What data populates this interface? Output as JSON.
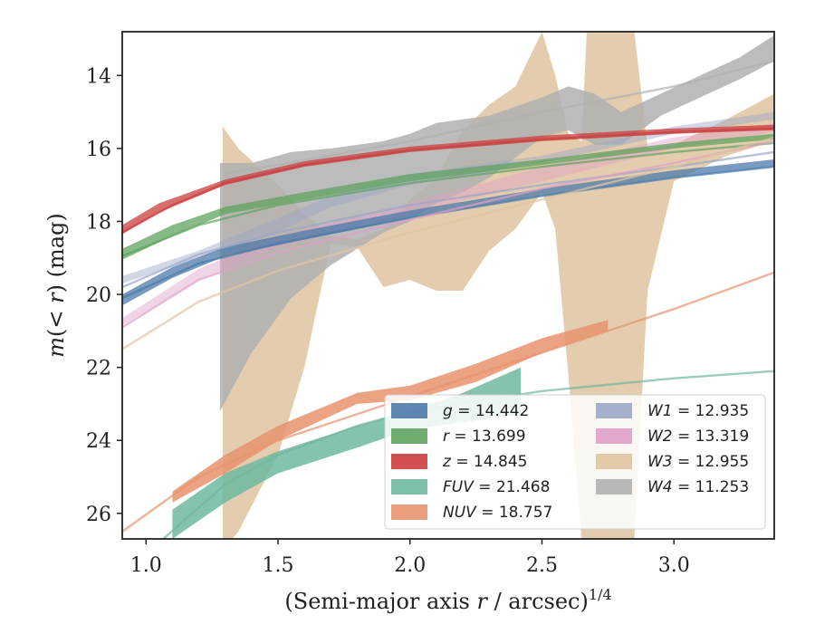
{
  "chart_data": {
    "type": "area",
    "xlabel": "(Semi-major axis r / arcsec)",
    "xlabel_var": "r",
    "xlabel_prefix": "(Semi-major axis ",
    "xlabel_suffix": " / arcsec)",
    "xlabel_exp": "1/4",
    "ylabel": "m(< r) (mag)",
    "ylabel_m": "m",
    "ylabel_open": "(",
    "ylabel_lt": "< r",
    "ylabel_close": ") (mag)",
    "xlim": [
      0.91,
      3.38
    ],
    "ylim": [
      26.7,
      12.8
    ],
    "y_inverted": true,
    "xticks": [
      1.0,
      1.5,
      2.0,
      2.5,
      3.0
    ],
    "xtick_labels": [
      "1.0",
      "1.5",
      "2.0",
      "2.5",
      "3.0"
    ],
    "yticks": [
      14,
      16,
      18,
      20,
      22,
      24,
      26
    ],
    "ytick_labels": [
      "14",
      "16",
      "18",
      "20",
      "22",
      "24",
      "26"
    ],
    "grid": false,
    "legend_placement": "lower-right",
    "legend_columns": 2,
    "series": [
      {
        "key": "g",
        "band": "g",
        "total": "14.442",
        "color": "#4c7aaa",
        "model": [
          [
            0.91,
            20.1
          ],
          [
            1.2,
            19.15
          ],
          [
            1.5,
            18.6
          ],
          [
            2.0,
            17.9
          ],
          [
            2.5,
            17.3
          ],
          [
            3.0,
            16.8
          ],
          [
            3.38,
            16.5
          ]
        ],
        "band_obs": [
          [
            0.91,
            20.3,
            20.0
          ],
          [
            1.1,
            19.55,
            19.25
          ],
          [
            1.3,
            18.95,
            18.7
          ],
          [
            1.6,
            18.5,
            18.25
          ],
          [
            2.0,
            17.9,
            17.7
          ],
          [
            2.5,
            17.3,
            17.1
          ],
          [
            3.0,
            16.8,
            16.6
          ],
          [
            3.38,
            16.5,
            16.3
          ]
        ]
      },
      {
        "key": "r",
        "band": "r",
        "total": "13.699",
        "color": "#5fa35f",
        "model": [
          [
            0.91,
            18.95
          ],
          [
            1.2,
            18.1
          ],
          [
            1.5,
            17.55
          ],
          [
            2.0,
            16.95
          ],
          [
            2.5,
            16.5
          ],
          [
            3.0,
            16.1
          ],
          [
            3.38,
            15.85
          ]
        ],
        "band_obs": [
          [
            0.91,
            19.05,
            18.75
          ],
          [
            1.1,
            18.4,
            18.1
          ],
          [
            1.3,
            17.8,
            17.6
          ],
          [
            1.6,
            17.4,
            17.2
          ],
          [
            2.0,
            16.9,
            16.7
          ],
          [
            2.5,
            16.45,
            16.3
          ],
          [
            3.0,
            16.0,
            15.85
          ],
          [
            3.38,
            15.75,
            15.6
          ]
        ]
      },
      {
        "key": "z",
        "band": "z",
        "total": "14.845",
        "color": "#cc3d3d",
        "model": [
          [
            0.91,
            18.3
          ],
          [
            1.1,
            17.55
          ],
          [
            1.3,
            16.95
          ],
          [
            1.6,
            16.45
          ],
          [
            2.0,
            16.05
          ],
          [
            2.5,
            15.75
          ],
          [
            3.0,
            15.55
          ],
          [
            3.38,
            15.45
          ]
        ],
        "band_obs": [
          [
            0.91,
            18.35,
            18.1
          ],
          [
            1.05,
            17.75,
            17.5
          ],
          [
            1.3,
            17.0,
            16.85
          ],
          [
            1.6,
            16.5,
            16.35
          ],
          [
            2.0,
            16.1,
            15.95
          ],
          [
            2.5,
            15.8,
            15.65
          ],
          [
            3.0,
            15.6,
            15.45
          ],
          [
            3.38,
            15.5,
            15.35
          ]
        ]
      },
      {
        "key": "fuv",
        "band": "FUV",
        "total": "21.468",
        "color": "#6fb8a0",
        "model": [
          [
            1.05,
            26.8
          ],
          [
            1.3,
            25.2
          ],
          [
            1.5,
            24.4
          ],
          [
            1.8,
            23.6
          ],
          [
            2.0,
            23.2
          ],
          [
            2.5,
            22.65
          ],
          [
            3.0,
            22.3
          ],
          [
            3.38,
            22.1
          ]
        ],
        "band_obs": [
          [
            1.1,
            26.7,
            25.9
          ],
          [
            1.3,
            25.7,
            24.9
          ],
          [
            1.5,
            24.9,
            24.3
          ],
          [
            1.8,
            24.2,
            23.6
          ],
          [
            2.0,
            23.7,
            23.2
          ],
          [
            2.2,
            23.5,
            22.7
          ],
          [
            2.42,
            23.3,
            22.0
          ]
        ]
      },
      {
        "key": "nuv",
        "band": "NUV",
        "total": "18.757",
        "color": "#e8936e",
        "model": [
          [
            0.91,
            26.5
          ],
          [
            1.2,
            25.0
          ],
          [
            1.5,
            24.0
          ],
          [
            2.0,
            22.8
          ],
          [
            2.5,
            21.6
          ],
          [
            3.0,
            20.4
          ],
          [
            3.38,
            19.4
          ]
        ],
        "band_obs": [
          [
            1.1,
            25.7,
            25.4
          ],
          [
            1.3,
            24.9,
            24.4
          ],
          [
            1.5,
            24.0,
            23.6
          ],
          [
            1.8,
            23.0,
            22.7
          ],
          [
            2.0,
            22.9,
            22.5
          ],
          [
            2.25,
            22.4,
            21.9
          ],
          [
            2.5,
            21.6,
            21.2
          ],
          [
            2.75,
            21.0,
            20.7
          ]
        ]
      },
      {
        "key": "w1",
        "band": "W1",
        "total": "12.935",
        "color": "#9ba7c8",
        "model": [
          [
            0.91,
            19.8
          ],
          [
            1.2,
            18.9
          ],
          [
            1.5,
            18.3
          ],
          [
            2.0,
            17.55
          ],
          [
            2.5,
            17.0
          ],
          [
            3.0,
            16.5
          ],
          [
            3.38,
            16.1
          ]
        ],
        "band_obs": [
          [
            0.91,
            19.7,
            19.5
          ],
          [
            1.2,
            19.0,
            18.8
          ],
          [
            1.5,
            18.3,
            17.9
          ],
          [
            1.7,
            17.6,
            17.3
          ],
          [
            2.0,
            17.0,
            16.7
          ],
          [
            2.5,
            16.4,
            16.2
          ],
          [
            3.0,
            15.6,
            15.4
          ],
          [
            3.38,
            15.2,
            15.0
          ]
        ]
      },
      {
        "key": "w2",
        "band": "W2",
        "total": "13.319",
        "color": "#e0a0c8",
        "model": [
          [
            0.91,
            20.9
          ],
          [
            1.2,
            19.6
          ],
          [
            1.5,
            18.85
          ],
          [
            2.0,
            17.95
          ],
          [
            2.5,
            17.1
          ],
          [
            3.0,
            16.4
          ],
          [
            3.38,
            15.8
          ]
        ],
        "band_obs": [
          [
            0.91,
            20.85,
            20.65
          ],
          [
            1.2,
            19.6,
            19.3
          ],
          [
            1.5,
            18.7,
            18.4
          ],
          [
            2.0,
            17.8,
            17.5
          ],
          [
            2.5,
            16.9,
            16.5
          ],
          [
            3.0,
            16.0,
            15.7
          ],
          [
            3.38,
            15.55,
            15.3
          ]
        ]
      },
      {
        "key": "w3",
        "band": "W3",
        "total": "12.955",
        "color": "#dfc4a0",
        "model": [
          [
            0.91,
            21.5
          ],
          [
            1.2,
            20.2
          ],
          [
            1.5,
            19.35
          ],
          [
            2.0,
            18.3
          ],
          [
            2.5,
            17.4
          ],
          [
            3.0,
            16.5
          ],
          [
            3.38,
            15.7
          ]
        ],
        "band_obs": [
          [
            1.29,
            15.4,
            27.0
          ],
          [
            1.35,
            16.0,
            26.5
          ],
          [
            1.5,
            17.0,
            24.4
          ],
          [
            1.6,
            17.8,
            22.0
          ],
          [
            1.7,
            18.4,
            18.6
          ],
          [
            1.8,
            18.5,
            18.7
          ],
          [
            1.9,
            18.2,
            19.8
          ],
          [
            2.0,
            17.4,
            19.6
          ],
          [
            2.1,
            16.8,
            19.9
          ],
          [
            2.2,
            15.5,
            19.9
          ],
          [
            2.3,
            14.8,
            18.8
          ],
          [
            2.4,
            14.3,
            18.2
          ],
          [
            2.5,
            12.8,
            17.2
          ],
          [
            2.55,
            14.0,
            18.2
          ],
          [
            2.6,
            15.6,
            22.2
          ],
          [
            2.65,
            15.8,
            26.7
          ],
          [
            2.67,
            12.8,
            26.7
          ],
          [
            2.75,
            12.8,
            26.7
          ],
          [
            2.85,
            12.8,
            26.7
          ],
          [
            2.9,
            16.0,
            19.9
          ],
          [
            3.0,
            15.9,
            16.9
          ],
          [
            3.2,
            15.2,
            16.2
          ],
          [
            3.38,
            14.5,
            15.8
          ]
        ]
      },
      {
        "key": "w4",
        "band": "W4",
        "total": "11.253",
        "color": "#b0b0b0",
        "model": [
          [
            1.29,
            16.7
          ],
          [
            1.5,
            16.45
          ],
          [
            2.0,
            15.8
          ],
          [
            2.5,
            15.0
          ],
          [
            3.0,
            14.3
          ],
          [
            3.38,
            13.6
          ]
        ],
        "band_obs": [
          [
            1.28,
            16.4,
            23.2
          ],
          [
            1.4,
            16.4,
            21.6
          ],
          [
            1.55,
            16.1,
            20.1
          ],
          [
            1.7,
            16.0,
            19.2
          ],
          [
            1.9,
            15.8,
            18.3
          ],
          [
            2.0,
            15.6,
            18.0
          ],
          [
            2.1,
            15.3,
            17.5
          ],
          [
            2.2,
            15.2,
            17.2
          ],
          [
            2.3,
            15.1,
            16.8
          ],
          [
            2.5,
            14.6,
            15.7
          ],
          [
            2.6,
            14.3,
            15.5
          ],
          [
            2.7,
            14.5,
            15.9
          ],
          [
            2.8,
            15.0,
            15.9
          ],
          [
            2.95,
            14.5,
            15.1
          ],
          [
            3.1,
            14.0,
            14.6
          ],
          [
            3.25,
            13.5,
            14.1
          ],
          [
            3.38,
            12.9,
            13.6
          ]
        ]
      }
    ]
  }
}
